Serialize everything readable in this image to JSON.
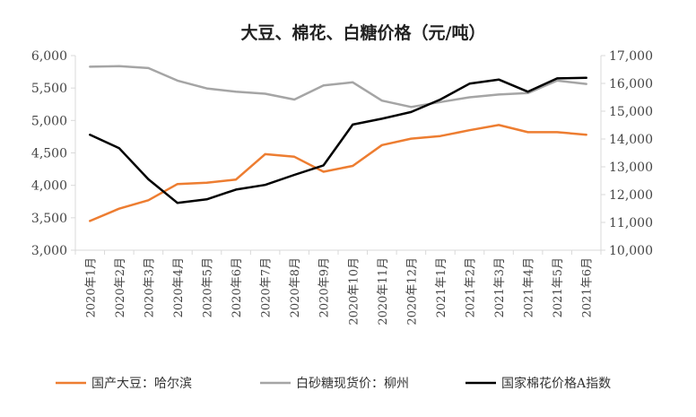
{
  "chart_data": {
    "type": "line",
    "title": "大豆、棉花、白糖价格（元/吨）",
    "categories": [
      "2020年1月",
      "2020年2月",
      "2020年3月",
      "2020年4月",
      "2020年5月",
      "2020年6月",
      "2020年7月",
      "2020年8月",
      "2020年9月",
      "2020年10月",
      "2020年11月",
      "2020年12月",
      "2021年1月",
      "2021年2月",
      "2021年3月",
      "2021年4月",
      "2021年5月",
      "2021年6月"
    ],
    "y_left": {
      "ylim": [
        3000,
        6000
      ],
      "ticks": [
        "3,000",
        "3,500",
        "4,000",
        "4,500",
        "5,000",
        "5,500",
        "6,000"
      ]
    },
    "y_right": {
      "ylim": [
        10000,
        17000
      ],
      "ticks": [
        "10,000",
        "11,000",
        "12,000",
        "13,000",
        "14,000",
        "15,000",
        "16,000",
        "17,000"
      ]
    },
    "grid": false,
    "legend_position": "bottom",
    "series": [
      {
        "name": "国产大豆：哈尔滨",
        "axis": "left",
        "color": "#ED7D31",
        "values": [
          3450,
          3640,
          3770,
          4020,
          4040,
          4090,
          4480,
          4440,
          4210,
          4300,
          4620,
          4720,
          4760,
          4850,
          4930,
          4820,
          4820,
          4780
        ]
      },
      {
        "name": "白砂糖现货价：柳州",
        "axis": "right",
        "color": "#A5A5A5",
        "values": [
          16600,
          16620,
          16550,
          16100,
          15820,
          15700,
          15630,
          15420,
          15930,
          16040,
          15380,
          15150,
          15330,
          15500,
          15600,
          15650,
          16100,
          15980
        ]
      },
      {
        "name": "国家棉花价格A指数",
        "axis": "right",
        "color": "#000000",
        "values": [
          14150,
          13670,
          12550,
          11700,
          11830,
          12180,
          12350,
          12710,
          13050,
          14520,
          14730,
          14970,
          15420,
          15990,
          16140,
          15700,
          16180,
          16200
        ]
      }
    ]
  }
}
